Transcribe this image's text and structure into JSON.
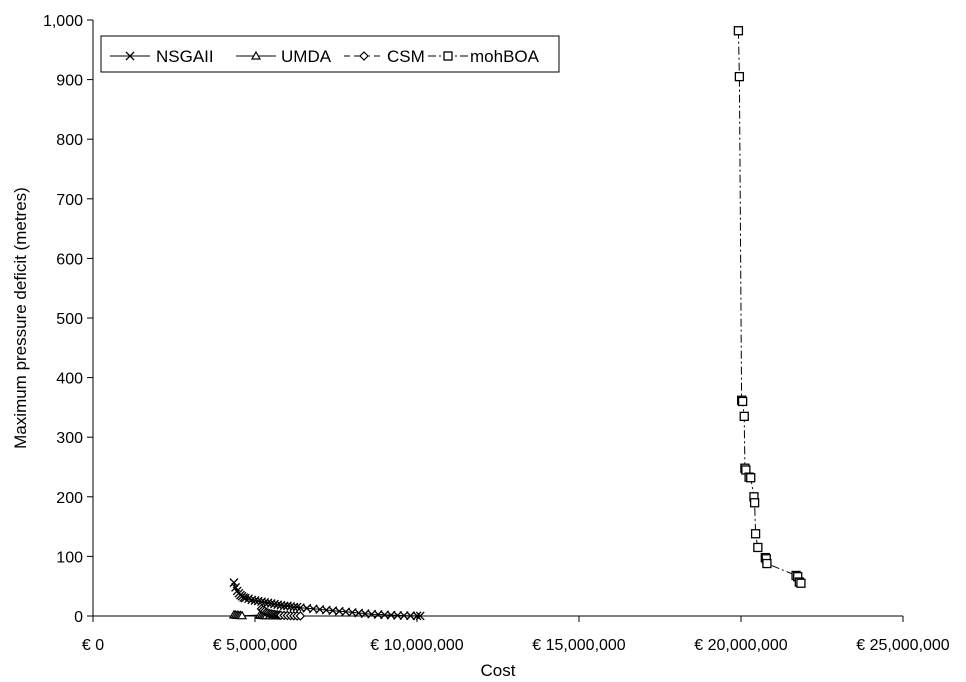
{
  "chart_data": {
    "type": "scatter",
    "title": "",
    "xlabel": "Cost",
    "ylabel": "Maximum pressure deficit (metres)",
    "xlim": [
      0,
      25000000
    ],
    "ylim": [
      0,
      1000
    ],
    "x_ticks": [
      0,
      5000000,
      10000000,
      15000000,
      20000000,
      25000000
    ],
    "x_tick_labels": [
      "€ 0",
      "€ 5,000,000",
      "€ 10,000,000",
      "€ 15,000,000",
      "€ 20,000,000",
      "€ 25,000,000"
    ],
    "y_ticks": [
      0,
      100,
      200,
      300,
      400,
      500,
      600,
      700,
      800,
      900,
      1000
    ],
    "y_tick_labels": [
      "0",
      "100",
      "200",
      "300",
      "400",
      "500",
      "600",
      "700",
      "800",
      "900",
      "1,000"
    ],
    "grid": false,
    "legend_position": "top-left",
    "series": [
      {
        "name": "NSGAII",
        "marker": "x",
        "line": "solid",
        "color": "#000000",
        "x": [
          4350000,
          4400000,
          4450000,
          4500000,
          4550000,
          4600000,
          4650000,
          4700000,
          4800000,
          4900000,
          5000000,
          5100000,
          5200000,
          5300000,
          5400000,
          5500000,
          5600000,
          5700000,
          5800000,
          5900000,
          6000000,
          6100000,
          6200000,
          6300000,
          6400000,
          6600000,
          6800000,
          7000000,
          7200000,
          7400000,
          7600000,
          7800000,
          8000000,
          8200000,
          8400000,
          8600000,
          8800000,
          9000000,
          9200000,
          9400000,
          9600000,
          9800000,
          10000000,
          10100000
        ],
        "y": [
          56,
          48,
          42,
          38,
          35,
          33,
          31,
          30,
          29,
          27,
          26,
          25,
          24,
          23,
          22,
          21,
          20,
          19,
          18,
          17,
          17,
          16,
          15,
          15,
          14,
          13,
          12,
          11,
          10,
          9,
          8,
          7,
          6,
          5,
          4,
          3,
          2.5,
          2,
          1.5,
          1,
          0.7,
          0.4,
          0.2,
          0.1
        ]
      },
      {
        "name": "UMDA",
        "marker": "triangle",
        "line": "solid",
        "color": "#000000",
        "x": [
          4350000,
          4400000,
          4450000,
          4500000,
          4550000,
          4600000,
          5150000,
          5200000,
          5250000,
          5300000,
          5350000,
          5450000,
          5550000,
          5650000
        ],
        "y": [
          2,
          1.5,
          1.2,
          1,
          0.8,
          0.5,
          1.5,
          1,
          0.8,
          0.6,
          0.5,
          0.3,
          0.2,
          0.1
        ]
      },
      {
        "name": "CSM",
        "marker": "diamond",
        "line": "dashed",
        "color": "#000000",
        "x": [
          5200000,
          5250000,
          5300000,
          5350000,
          5400000,
          5450000,
          5500000,
          5550000,
          5600000,
          5650000,
          5700000,
          5750000,
          5800000,
          5900000,
          6000000,
          6100000,
          6200000,
          6300000,
          6400000
        ],
        "y": [
          12,
          10,
          8,
          6,
          5,
          4,
          3.5,
          3,
          2.5,
          2,
          1.8,
          1.5,
          1.2,
          1,
          0.8,
          0.5,
          0.3,
          0.2,
          0.1
        ]
      },
      {
        "name": "mohBOA",
        "marker": "square",
        "line": "dashdot",
        "color": "#000000",
        "x": [
          19920000,
          19950000,
          20020000,
          20050000,
          20100000,
          20120000,
          20150000,
          20250000,
          20300000,
          20400000,
          20420000,
          20450000,
          20520000,
          20750000,
          20780000,
          20800000,
          21700000,
          21750000,
          21800000,
          21850000
        ],
        "y": [
          982,
          905,
          362,
          360,
          335,
          248,
          245,
          233,
          232,
          200,
          190,
          138,
          115,
          98,
          96,
          88,
          68,
          66,
          57,
          55
        ]
      }
    ]
  }
}
